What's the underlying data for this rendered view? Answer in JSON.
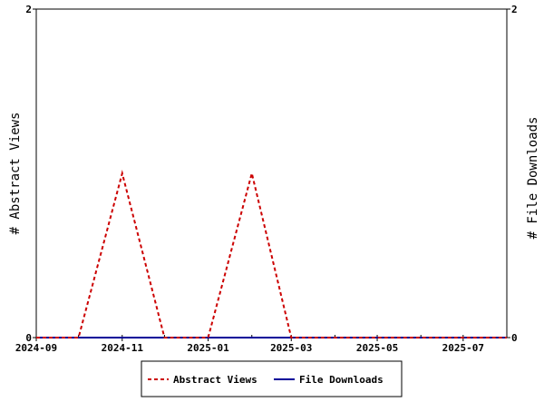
{
  "chart_data": {
    "type": "line",
    "title": "",
    "xlabel": "",
    "ylabel_left": "# Abstract Views",
    "ylabel_right": "# File Downloads",
    "x_range": [
      "2024-09",
      "2025-08"
    ],
    "x_ticks": [
      "2024-09",
      "2024-11",
      "2025-01",
      "2025-03",
      "2025-05",
      "2025-07"
    ],
    "x_tick_dates": [
      "2024-09-01",
      "2024-11-01",
      "2025-01-01",
      "2025-03-01",
      "2025-05-01",
      "2025-07-01"
    ],
    "ylim_left": [
      0,
      2
    ],
    "ylim_right": [
      0,
      2
    ],
    "y_ticks_left": [
      "0",
      "2"
    ],
    "y_ticks_right": [
      "0",
      "2"
    ],
    "grid": false,
    "legend_placement": "bottom-center",
    "series": [
      {
        "name": "Abstract Views",
        "axis": "left",
        "color": "#cc0000",
        "line_style": "dashed",
        "points": [
          {
            "x": "2024-09-01",
            "y": 0
          },
          {
            "x": "2024-10-01",
            "y": 0
          },
          {
            "x": "2024-11-01",
            "y": 1
          },
          {
            "x": "2024-12-01",
            "y": 0
          },
          {
            "x": "2025-01-01",
            "y": 0
          },
          {
            "x": "2025-02-01",
            "y": 1
          },
          {
            "x": "2025-03-01",
            "y": 0
          },
          {
            "x": "2025-04-01",
            "y": 0
          },
          {
            "x": "2025-05-01",
            "y": 0
          },
          {
            "x": "2025-06-01",
            "y": 0
          },
          {
            "x": "2025-07-01",
            "y": 0
          },
          {
            "x": "2025-08-01",
            "y": 0
          }
        ]
      },
      {
        "name": "File Downloads",
        "axis": "right",
        "color": "#000099",
        "line_style": "solid",
        "points": [
          {
            "x": "2024-09-01",
            "y": 0
          },
          {
            "x": "2024-10-01",
            "y": 0
          },
          {
            "x": "2024-11-01",
            "y": 0
          },
          {
            "x": "2024-12-01",
            "y": 0
          },
          {
            "x": "2025-01-01",
            "y": 0
          },
          {
            "x": "2025-02-01",
            "y": 0
          },
          {
            "x": "2025-03-01",
            "y": 0
          },
          {
            "x": "2025-04-01",
            "y": 0
          },
          {
            "x": "2025-05-01",
            "y": 0
          },
          {
            "x": "2025-06-01",
            "y": 0
          },
          {
            "x": "2025-07-01",
            "y": 0
          },
          {
            "x": "2025-08-01",
            "y": 0
          }
        ]
      }
    ]
  }
}
